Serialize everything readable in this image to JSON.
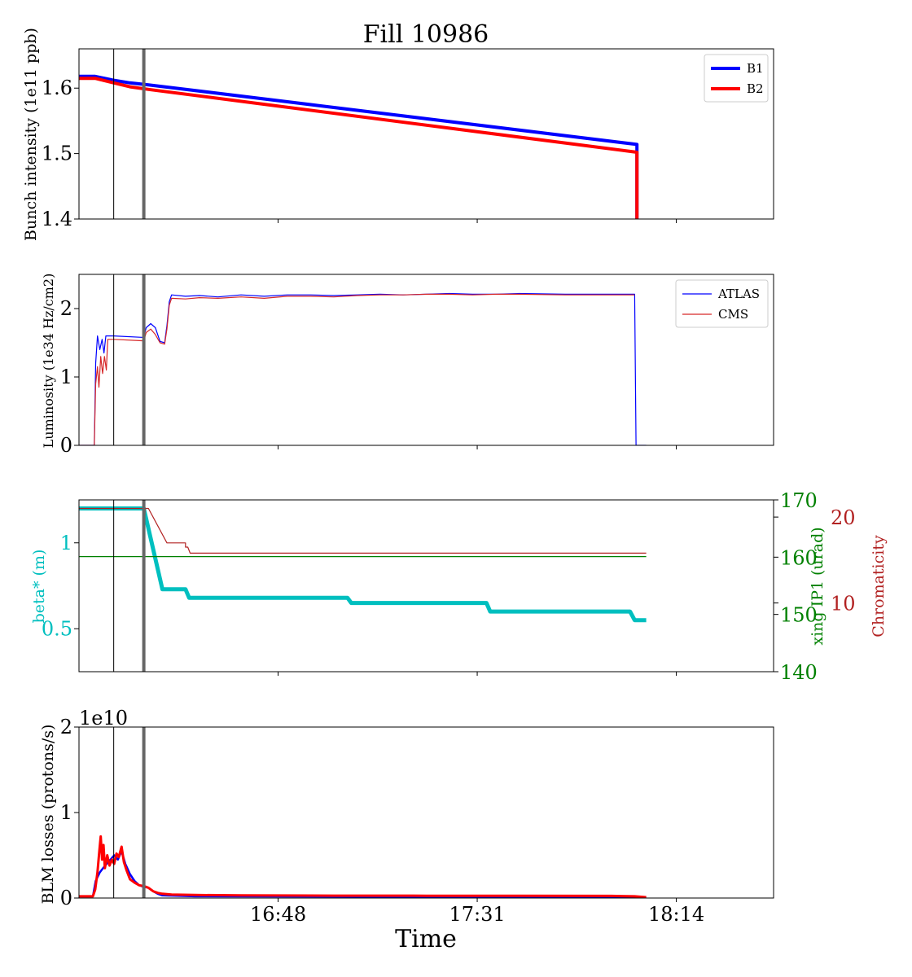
{
  "title": "Fill 10986",
  "xlabel": "Time",
  "x_ticks": [
    "16:48",
    "17:31",
    "18:14"
  ],
  "x_tick_minutes": [
    1008,
    1051,
    1094
  ],
  "x_range_minutes": [
    965,
    1115
  ],
  "markers_minutes": [
    {
      "t": 972.5,
      "style": "thin"
    },
    {
      "t": 979.0,
      "style": "thick"
    }
  ],
  "colors": {
    "b1": "#0000ff",
    "b2": "#ff0000",
    "atlas": "#0000ff",
    "cms": "#d62728",
    "beta": "#00bfbf",
    "xing": "#008000",
    "chroma": "#b22222",
    "marker": "#666666"
  },
  "chart_data": [
    {
      "type": "line",
      "ylabel": "Bunch intensity (1e11 ppb)",
      "ylim": [
        1.4,
        1.66
      ],
      "yticks": [
        1.4,
        1.5,
        1.6
      ],
      "legend": "top-right",
      "series": [
        {
          "name": "B1",
          "color": "#0000ff",
          "width": 4,
          "points": [
            [
              965,
              1.618
            ],
            [
              968.5,
              1.618
            ],
            [
              972.5,
              1.612
            ],
            [
              976,
              1.608
            ],
            [
              980,
              1.605
            ],
            [
              1085.5,
              1.514
            ],
            [
              1085.5,
              1.4
            ]
          ]
        },
        {
          "name": "B2",
          "color": "#ff0000",
          "width": 4,
          "points": [
            [
              965,
              1.615
            ],
            [
              968.5,
              1.615
            ],
            [
              972.5,
              1.608
            ],
            [
              976,
              1.602
            ],
            [
              980,
              1.598
            ],
            [
              1085.5,
              1.502
            ],
            [
              1085.5,
              1.4
            ]
          ]
        }
      ]
    },
    {
      "type": "line",
      "ylabel": "Luminosity (1e34 Hz/cm2)",
      "ylim": [
        0,
        2.5
      ],
      "yticks": [
        0,
        1,
        2
      ],
      "legend": "top-right",
      "series": [
        {
          "name": "ATLAS",
          "color": "#0000ff",
          "width": 1.2,
          "points": [
            [
              965,
              0
            ],
            [
              968.3,
              0
            ],
            [
              968.6,
              1.2
            ],
            [
              969,
              1.6
            ],
            [
              969.5,
              1.4
            ],
            [
              970,
              1.55
            ],
            [
              970.4,
              1.35
            ],
            [
              970.8,
              1.6
            ],
            [
              971.2,
              1.6
            ],
            [
              972.5,
              1.6
            ],
            [
              978.5,
              1.58
            ],
            [
              979,
              1.58
            ],
            [
              979.5,
              1.72
            ],
            [
              980.5,
              1.78
            ],
            [
              981.5,
              1.72
            ],
            [
              982.5,
              1.52
            ],
            [
              983.5,
              1.5
            ],
            [
              984,
              1.75
            ],
            [
              984.5,
              2.1
            ],
            [
              985,
              2.2
            ],
            [
              988,
              2.18
            ],
            [
              991,
              2.19
            ],
            [
              995,
              2.17
            ],
            [
              1000,
              2.2
            ],
            [
              1005,
              2.18
            ],
            [
              1010,
              2.2
            ],
            [
              1015,
              2.2
            ],
            [
              1020,
              2.19
            ],
            [
              1025,
              2.2
            ],
            [
              1030,
              2.21
            ],
            [
              1035,
              2.2
            ],
            [
              1040,
              2.21
            ],
            [
              1045,
              2.22
            ],
            [
              1050,
              2.21
            ],
            [
              1055,
              2.21
            ],
            [
              1060,
              2.22
            ],
            [
              1070,
              2.21
            ],
            [
              1080,
              2.21
            ],
            [
              1085,
              2.21
            ],
            [
              1085.3,
              0
            ],
            [
              1087.5,
              0
            ]
          ]
        },
        {
          "name": "CMS",
          "color": "#d62728",
          "width": 1.2,
          "points": [
            [
              965,
              0
            ],
            [
              968.3,
              0
            ],
            [
              968.6,
              0.9
            ],
            [
              969,
              1.15
            ],
            [
              969.3,
              0.85
            ],
            [
              969.7,
              1.3
            ],
            [
              970.1,
              1.05
            ],
            [
              970.5,
              1.3
            ],
            [
              970.9,
              1.1
            ],
            [
              971.2,
              1.55
            ],
            [
              972.5,
              1.55
            ],
            [
              978.5,
              1.53
            ],
            [
              979,
              1.53
            ],
            [
              979.5,
              1.65
            ],
            [
              980.5,
              1.7
            ],
            [
              981.5,
              1.62
            ],
            [
              982.5,
              1.5
            ],
            [
              983.5,
              1.48
            ],
            [
              984,
              1.7
            ],
            [
              984.5,
              2.05
            ],
            [
              985,
              2.15
            ],
            [
              988,
              2.14
            ],
            [
              991,
              2.16
            ],
            [
              995,
              2.15
            ],
            [
              1000,
              2.17
            ],
            [
              1005,
              2.15
            ],
            [
              1010,
              2.18
            ],
            [
              1015,
              2.18
            ],
            [
              1020,
              2.17
            ],
            [
              1025,
              2.19
            ],
            [
              1030,
              2.2
            ],
            [
              1035,
              2.2
            ],
            [
              1040,
              2.21
            ],
            [
              1045,
              2.21
            ],
            [
              1050,
              2.2
            ],
            [
              1055,
              2.21
            ],
            [
              1060,
              2.21
            ],
            [
              1070,
              2.2
            ],
            [
              1080,
              2.2
            ],
            [
              1085,
              2.2
            ]
          ]
        }
      ]
    },
    {
      "type": "line",
      "ylabel": "beta* (m)",
      "ylabel_right": "xing IP1 (urad)",
      "ylabel_right2": "Chromaticity",
      "ylim": [
        0.25,
        1.25
      ],
      "yticks": [
        0.5,
        1.0
      ],
      "ylim_right": [
        140,
        170
      ],
      "yticks_right": [
        140,
        150,
        160,
        170
      ],
      "ylim_right2": [
        2,
        22
      ],
      "yticks_right2": [
        10,
        20
      ],
      "series": [
        {
          "name": "beta*",
          "axis": "left",
          "color": "#00bfbf",
          "width": 5,
          "points": [
            [
              965,
              1.2
            ],
            [
              979,
              1.2
            ],
            [
              983,
              0.73
            ],
            [
              988,
              0.73
            ],
            [
              988.8,
              0.68
            ],
            [
              1023,
              0.68
            ],
            [
              1023.8,
              0.65
            ],
            [
              1053,
              0.65
            ],
            [
              1053.8,
              0.6
            ],
            [
              1084,
              0.6
            ],
            [
              1085,
              0.55
            ],
            [
              1087.5,
              0.55
            ]
          ]
        },
        {
          "name": "xing IP1",
          "axis": "right",
          "color": "#008000",
          "width": 1.2,
          "points": [
            [
              965,
              160.1
            ],
            [
              1087.5,
              160.1
            ]
          ]
        },
        {
          "name": "Chromaticity",
          "axis": "right2",
          "color": "#b22222",
          "width": 1.2,
          "points": [
            [
              965,
              21
            ],
            [
              979,
              21
            ],
            [
              979,
              17
            ],
            [
              979.3,
              21
            ],
            [
              980,
              21
            ],
            [
              984,
              17
            ],
            [
              988,
              17
            ],
            [
              988,
              16.5
            ],
            [
              988.5,
              16.5
            ],
            [
              989,
              15.8
            ],
            [
              1087.5,
              15.8
            ]
          ]
        }
      ]
    },
    {
      "type": "line",
      "ylabel": "BLM losses (protons/s)",
      "y_offset_text": "1e10",
      "ylim": [
        0,
        2
      ],
      "yticks": [
        0,
        1,
        2
      ],
      "series": [
        {
          "name": "B1",
          "color": "#0000ff",
          "width": 2.5,
          "points": [
            [
              965,
              0.02
            ],
            [
              968,
              0.02
            ],
            [
              968.6,
              0.2
            ],
            [
              969.5,
              0.3
            ],
            [
              970.2,
              0.35
            ],
            [
              971,
              0.4
            ],
            [
              971.8,
              0.45
            ],
            [
              972.6,
              0.5
            ],
            [
              973.4,
              0.45
            ],
            [
              974.2,
              0.55
            ],
            [
              975,
              0.4
            ],
            [
              976,
              0.28
            ],
            [
              977,
              0.2
            ],
            [
              978,
              0.15
            ],
            [
              979,
              0.13
            ],
            [
              980,
              0.12
            ],
            [
              981,
              0.08
            ],
            [
              982,
              0.05
            ],
            [
              983,
              0.03
            ],
            [
              990,
              0.02
            ],
            [
              1087.5,
              0.01
            ]
          ]
        },
        {
          "name": "B2",
          "color": "#ff0000",
          "width": 3,
          "points": [
            [
              965,
              0.02
            ],
            [
              968,
              0.02
            ],
            [
              968.5,
              0.1
            ],
            [
              969,
              0.3
            ],
            [
              969.4,
              0.55
            ],
            [
              969.7,
              0.72
            ],
            [
              970,
              0.45
            ],
            [
              970.3,
              0.62
            ],
            [
              970.6,
              0.35
            ],
            [
              971.1,
              0.5
            ],
            [
              971.6,
              0.38
            ],
            [
              972.1,
              0.45
            ],
            [
              972.6,
              0.4
            ],
            [
              973.1,
              0.52
            ],
            [
              973.6,
              0.48
            ],
            [
              974.2,
              0.6
            ],
            [
              974.7,
              0.42
            ],
            [
              975.3,
              0.32
            ],
            [
              976,
              0.22
            ],
            [
              977,
              0.18
            ],
            [
              978,
              0.15
            ],
            [
              979,
              0.14
            ],
            [
              980,
              0.12
            ],
            [
              981,
              0.08
            ],
            [
              982,
              0.06
            ],
            [
              983,
              0.05
            ],
            [
              985,
              0.04
            ],
            [
              990,
              0.035
            ],
            [
              1000,
              0.03
            ],
            [
              1020,
              0.028
            ],
            [
              1040,
              0.027
            ],
            [
              1060,
              0.026
            ],
            [
              1080,
              0.025
            ],
            [
              1085,
              0.02
            ],
            [
              1087.5,
              0.01
            ]
          ]
        }
      ]
    }
  ]
}
